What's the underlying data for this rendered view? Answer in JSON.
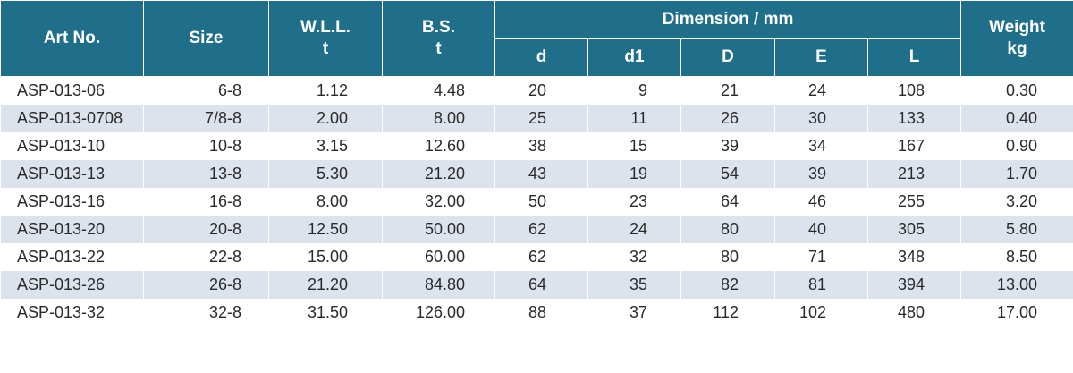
{
  "header": {
    "art_no": "Art No.",
    "size": "Size",
    "wll_line1": "W.L.L.",
    "wll_line2": "t",
    "bs_line1": "B.S.",
    "bs_line2": "t",
    "dimension": "Dimension / mm",
    "weight_line1": "Weight",
    "weight_line2": "kg",
    "sub": [
      "d",
      "d1",
      "D",
      "E",
      "L"
    ]
  },
  "rows": [
    {
      "art": "ASP-013-06",
      "size": "6-8",
      "wll": "1.12",
      "bs": "4.48",
      "d": "20",
      "d1": "9",
      "D": "21",
      "E": "24",
      "L": "108",
      "wt": "0.30"
    },
    {
      "art": "ASP-013-0708",
      "size": "7/8-8",
      "wll": "2.00",
      "bs": "8.00",
      "d": "25",
      "d1": "11",
      "D": "26",
      "E": "30",
      "L": "133",
      "wt": "0.40"
    },
    {
      "art": "ASP-013-10",
      "size": "10-8",
      "wll": "3.15",
      "bs": "12.60",
      "d": "38",
      "d1": "15",
      "D": "39",
      "E": "34",
      "L": "167",
      "wt": "0.90"
    },
    {
      "art": "ASP-013-13",
      "size": "13-8",
      "wll": "5.30",
      "bs": "21.20",
      "d": "43",
      "d1": "19",
      "D": "54",
      "E": "39",
      "L": "213",
      "wt": "1.70"
    },
    {
      "art": "ASP-013-16",
      "size": "16-8",
      "wll": "8.00",
      "bs": "32.00",
      "d": "50",
      "d1": "23",
      "D": "64",
      "E": "46",
      "L": "255",
      "wt": "3.20"
    },
    {
      "art": "ASP-013-20",
      "size": "20-8",
      "wll": "12.50",
      "bs": "50.00",
      "d": "62",
      "d1": "24",
      "D": "80",
      "E": "40",
      "L": "305",
      "wt": "5.80"
    },
    {
      "art": "ASP-013-22",
      "size": "22-8",
      "wll": "15.00",
      "bs": "60.00",
      "d": "62",
      "d1": "32",
      "D": "80",
      "E": "71",
      "L": "348",
      "wt": "8.50"
    },
    {
      "art": "ASP-013-26",
      "size": "26-8",
      "wll": "21.20",
      "bs": "84.80",
      "d": "64",
      "d1": "35",
      "D": "82",
      "E": "81",
      "L": "394",
      "wt": "13.00"
    },
    {
      "art": "ASP-013-32",
      "size": "32-8",
      "wll": "31.50",
      "bs": "126.00",
      "d": "88",
      "d1": "37",
      "D": "112",
      "E": "102",
      "L": "480",
      "wt": "17.00"
    }
  ],
  "colors": {
    "header_bg": "#1f6f8b",
    "header_text": "#ffffff",
    "row_alt_bg": "#dde3ec",
    "row_bg": "#ffffff",
    "body_text": "#2a2a2a"
  }
}
